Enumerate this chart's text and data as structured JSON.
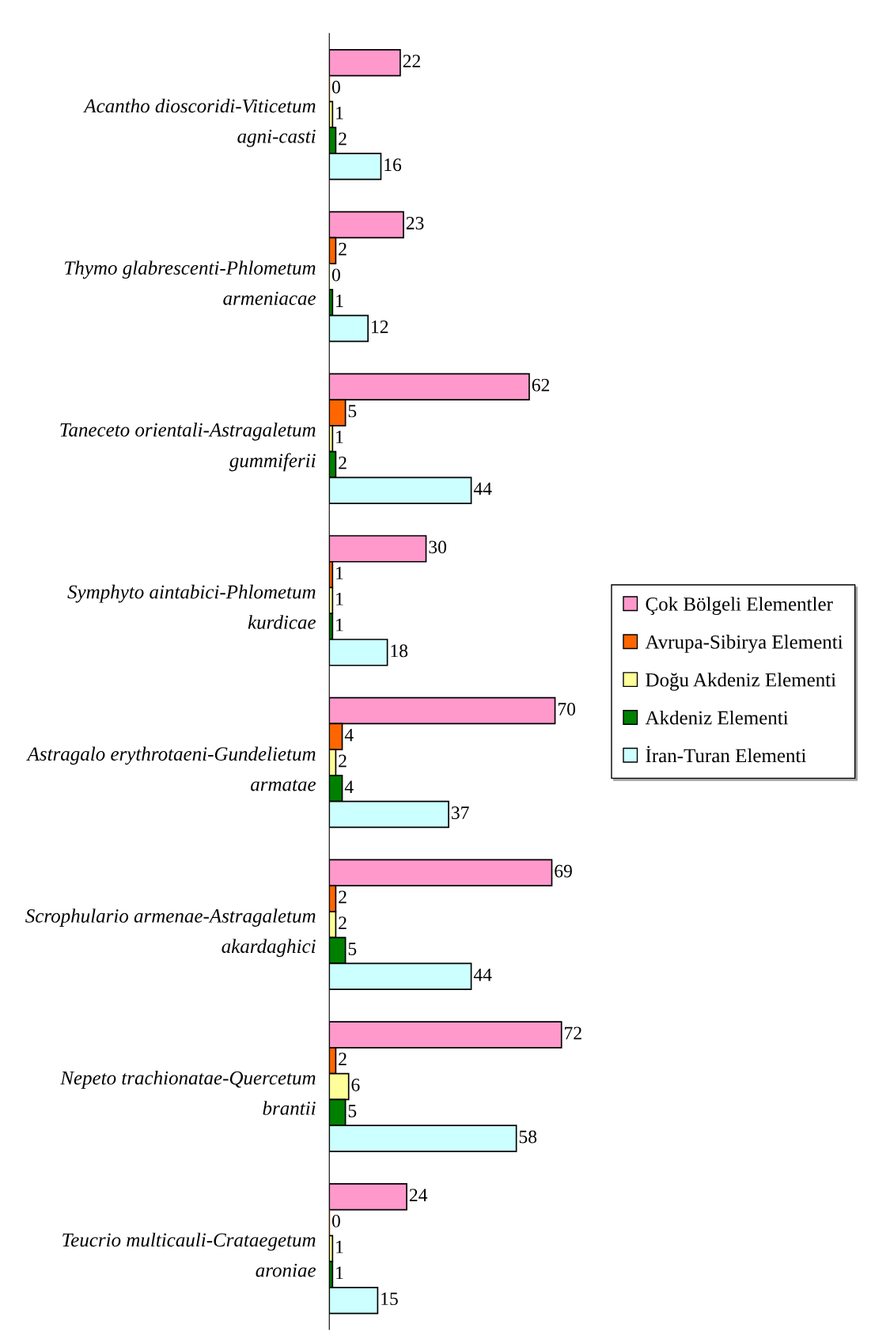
{
  "chart_data": {
    "type": "bar",
    "orientation": "horizontal",
    "data_labels": true,
    "legend": "right",
    "grid": false,
    "categories": [
      "Acantho dioscoridi-Viticetum agni-casti",
      "Thymo glabrescenti-Phlometum armeniacae",
      "Taneceto orientali-Astragaletum gummiferii",
      "Symphyto aintabici-Phlometum kurdicae",
      "Astragalo erythrotaeni-Gundelietum armatae",
      "Scrophulario armenae-Astragaletum akardaghici",
      "Nepeto trachionatae-Quercetum brantii",
      "Teucrio multicauli-Crataegetum aroniae"
    ],
    "series": [
      {
        "name": "Çok Bölgeli Elementler",
        "color": "#ff99cc",
        "values": [
          22,
          23,
          62,
          30,
          70,
          69,
          72,
          24
        ]
      },
      {
        "name": "Avrupa-Sibirya Elementi",
        "color": "#ff6600",
        "values": [
          0,
          2,
          5,
          1,
          4,
          2,
          2,
          0
        ]
      },
      {
        "name": "Doğu Akdeniz Elementi",
        "color": "#ffff99",
        "values": [
          1,
          0,
          1,
          1,
          2,
          2,
          6,
          1
        ]
      },
      {
        "name": "Akdeniz Elementi",
        "color": "#008000",
        "values": [
          2,
          1,
          2,
          1,
          4,
          5,
          5,
          1
        ]
      },
      {
        "name": "İran-Turan Elementi",
        "color": "#ccffff",
        "values": [
          16,
          12,
          44,
          18,
          37,
          44,
          58,
          15
        ]
      }
    ]
  }
}
